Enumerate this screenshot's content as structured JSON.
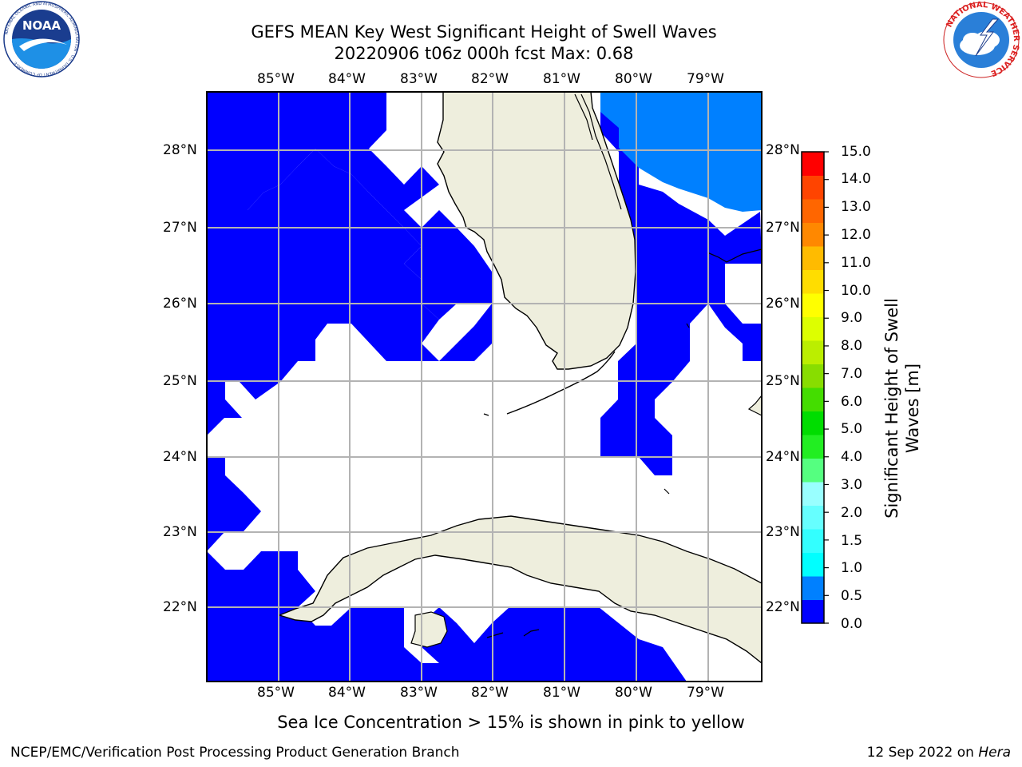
{
  "header": {
    "title_line1": "GEFS MEAN Key West Significant Height of Swell Waves",
    "title_line2": "20220906 t06z 000h fcst   Max: 0.68"
  },
  "logos": {
    "left": {
      "name": "noaa-logo",
      "text": "NOAA",
      "ring_text": "NATIONAL OCEANIC AND ATMOSPHERIC ADMINISTRATION · U.S. DEPARTMENT OF COMMERCE"
    },
    "right": {
      "name": "nws-logo",
      "ring_text": "NATIONAL WEATHER SERVICE"
    }
  },
  "map": {
    "lon_labels": [
      "85°W",
      "84°W",
      "83°W",
      "82°W",
      "81°W",
      "80°W",
      "79°W"
    ],
    "lat_labels": [
      "28°N",
      "27°N",
      "26°N",
      "25°N",
      "24°N",
      "23°N",
      "22°N"
    ],
    "land_color": "#eeeedd",
    "grid_color": "#b3b3b3"
  },
  "colorbar": {
    "label": "Significant Height of Swell Waves [m]",
    "ticks": [
      "15.0",
      "14.0",
      "13.0",
      "12.0",
      "11.0",
      "10.0",
      "9.0",
      "8.0",
      "7.0",
      "6.0",
      "5.0",
      "4.0",
      "3.0",
      "2.0",
      "1.5",
      "1.0",
      "0.5",
      "0.0"
    ],
    "colors_bottom_to_top": [
      "#0000ff",
      "#0080ff",
      "#00ffff",
      "#33ffff",
      "#66ffff",
      "#99ffff",
      "#55ff80",
      "#22ee22",
      "#00dd00",
      "#44dd00",
      "#88dd00",
      "#bbee00",
      "#ddff00",
      "#ffff00",
      "#ffdd00",
      "#ffbb00",
      "#ff8800",
      "#ff6600",
      "#ff4400",
      "#ff0000"
    ]
  },
  "note": "Sea Ice Concentration > 15% is shown in pink to yellow",
  "footer": {
    "left": "NCEP/EMC/Verification Post Processing Product Generation Branch",
    "right_date": "12 Sep 2022 on",
    "right_host": "Hera"
  }
}
